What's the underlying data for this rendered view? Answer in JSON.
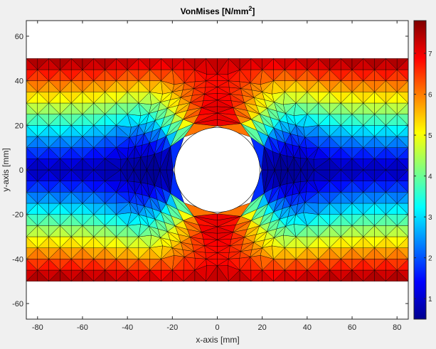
{
  "chart_data": {
    "type": "heatmap",
    "title": "VonMises [N/mm",
    "title_superscript": "2",
    "title_suffix": "]",
    "xlabel": "x-axis [mm]",
    "ylabel": "y-axis [mm]",
    "xlim": [
      -85,
      85
    ],
    "ylim": [
      -67,
      67
    ],
    "x_ticks": [
      -80,
      -60,
      -40,
      -20,
      0,
      20,
      40,
      60,
      80
    ],
    "y_ticks": [
      -60,
      -40,
      -20,
      0,
      20,
      40,
      60
    ],
    "colorbar": {
      "colormap": "jet",
      "range": [
        0.5,
        7.8
      ],
      "ticks": [
        1,
        2,
        3,
        4,
        5,
        6,
        7
      ]
    },
    "plate": {
      "x_range": [
        -85,
        85
      ],
      "y_range": [
        -50,
        50
      ],
      "hole_center": [
        0,
        0
      ],
      "hole_radius": 19
    },
    "mesh_edge_color": "#000000",
    "hole_color": "#ffffff"
  }
}
